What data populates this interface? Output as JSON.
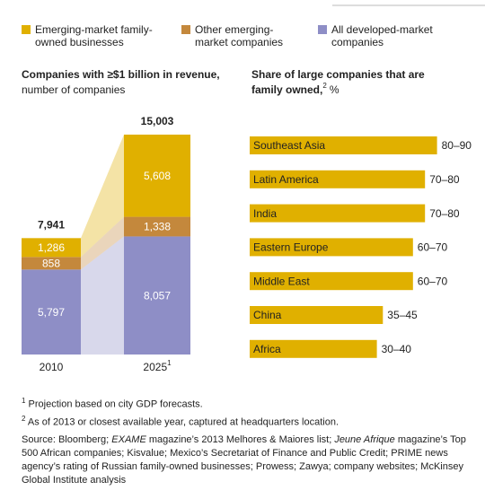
{
  "chart_data": [
    {
      "type": "stacked_bar_connected",
      "title": "Companies with ≥$1 billion in revenue,",
      "subtitle": "number of companies",
      "categories": [
        "2010",
        "2025"
      ],
      "category_notes": [
        null,
        "1"
      ],
      "series": [
        {
          "name": "All developed-market companies",
          "color": "#8e8ec6",
          "values": [
            5797,
            8057
          ],
          "value_labels": [
            "5,797",
            "8,057"
          ]
        },
        {
          "name": "Other emerging-market companies",
          "color": "#c4883c",
          "values": [
            858,
            1338
          ],
          "value_labels": [
            "858",
            "1,338"
          ]
        },
        {
          "name": "Emerging-market family-owned businesses",
          "color": "#e0b000",
          "values": [
            1286,
            5608
          ],
          "value_labels": [
            "1,286",
            "5,608"
          ]
        }
      ],
      "totals": [
        {
          "value": 7941,
          "label": "7,941"
        },
        {
          "value": 15003,
          "label": "15,003"
        }
      ]
    },
    {
      "type": "range_barh",
      "title": "Share of large companies that are family owned,",
      "title_note": "2",
      "unit": "%",
      "color": "#e0b000",
      "categories": [
        "Southeast Asia",
        "Latin America",
        "India",
        "Eastern Europe",
        "Middle East",
        "China",
        "Africa"
      ],
      "values": [
        [
          80,
          90
        ],
        [
          70,
          80
        ],
        [
          70,
          80
        ],
        [
          60,
          70
        ],
        [
          60,
          70
        ],
        [
          35,
          45
        ],
        [
          30,
          40
        ]
      ],
      "value_labels": [
        "80–90",
        "70–80",
        "70–80",
        "60–70",
        "60–70",
        "35–45",
        "30–40"
      ]
    }
  ],
  "notes": [
    {
      "mark": "1",
      "text": "Projection based on city GDP forecasts."
    },
    {
      "mark": "2",
      "text": "As of 2013 or closest available year, captured at headquarters location."
    }
  ],
  "source": [
    {
      "text": "Source: Bloomberg; "
    },
    {
      "text": "EXAME",
      "italic": true
    },
    {
      "text": " magazine’s 2013 Melhores & Maiores list; "
    },
    {
      "text": "Jeune Afrique",
      "italic": true
    },
    {
      "text": " magazine’s Top 500 African companies; Kisvalue; Mexico’s Secretariat of Finance and Public Credit; PRIME news agency’s rating of Russian family-owned businesses; Prowess; Zawya; company websites; McKinsey Global Institute analysis"
    }
  ]
}
